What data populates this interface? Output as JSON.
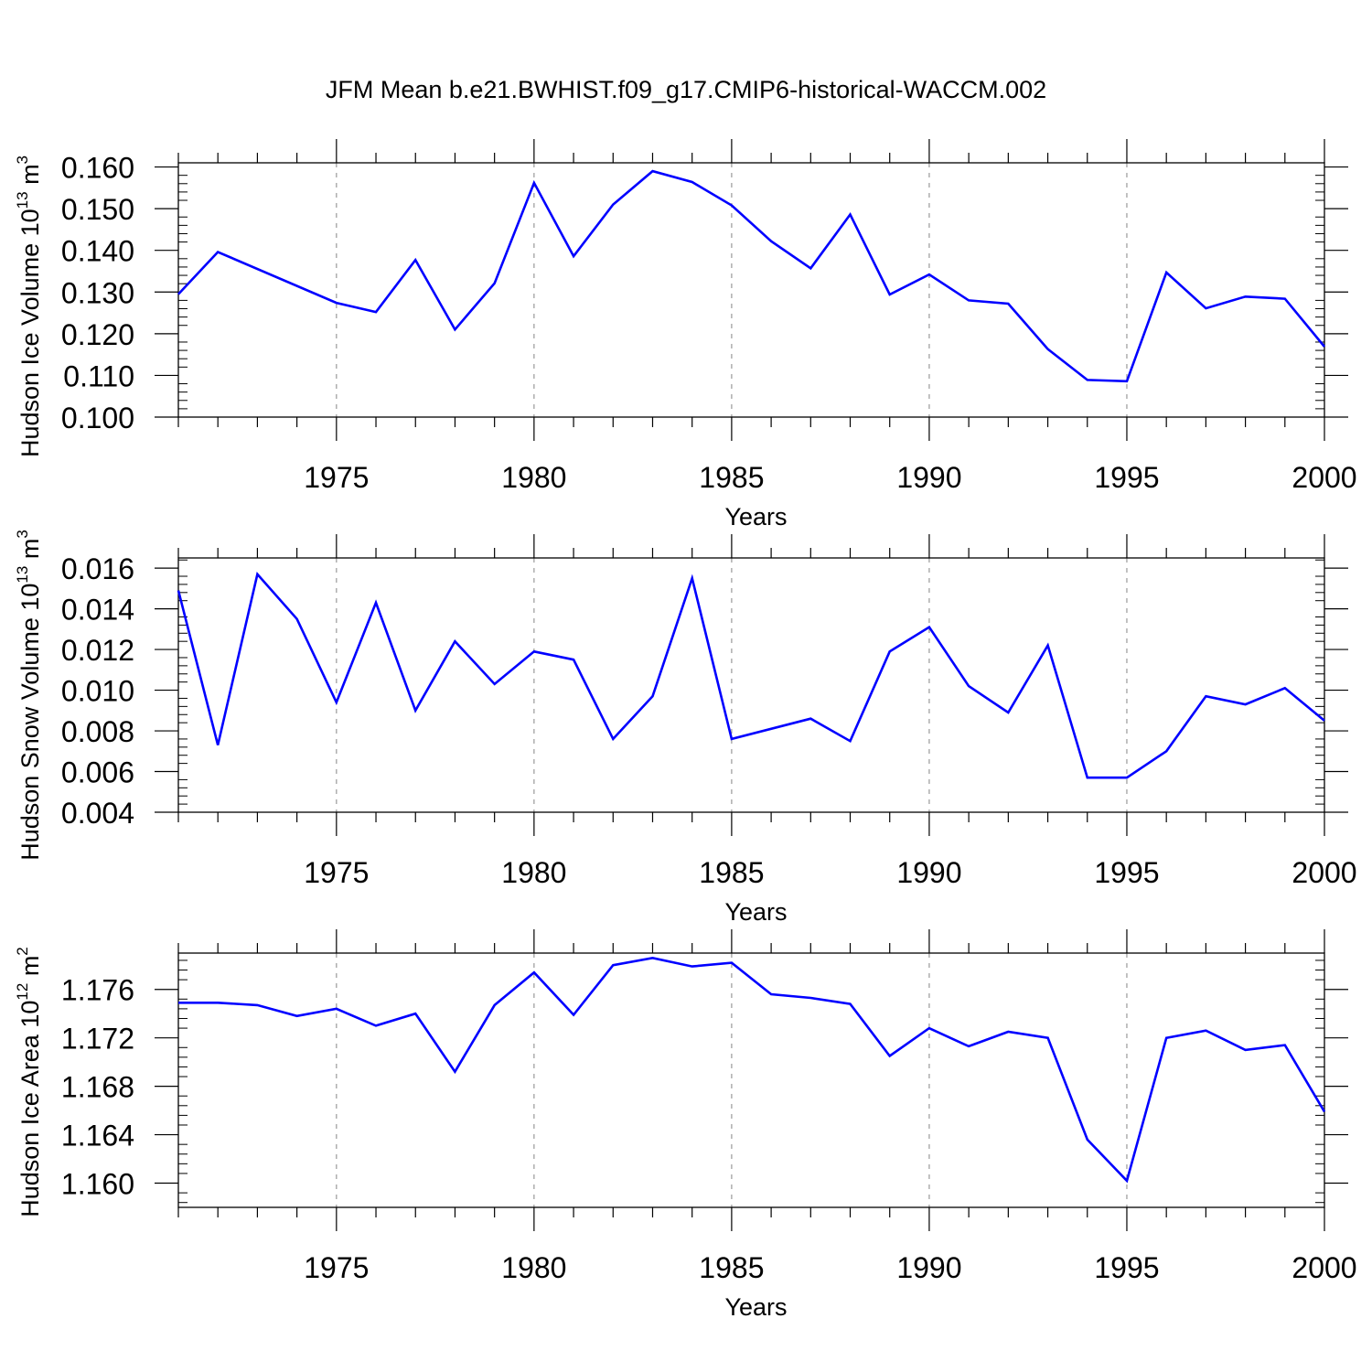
{
  "title": "JFM Mean b.e21.BWHIST.f09_g17.CMIP6-historical-WACCM.002",
  "colors": {
    "series": "#0000ff",
    "axis": "#000000",
    "grid": "#999999",
    "background": "#ffffff"
  },
  "chart_data": [
    {
      "type": "line",
      "ylabel": "Hudson Ice Volume 10",
      "ylabel_sup": "13",
      "ylabel_unit": " m",
      "ylabel_unit_sup": "3",
      "xlabel": "Years",
      "xlim": [
        1971,
        2000
      ],
      "ylim": [
        0.1,
        0.161
      ],
      "yticks": [
        0.1,
        0.11,
        0.12,
        0.13,
        0.14,
        0.15,
        0.16
      ],
      "ytick_labels": [
        "0.100",
        "0.110",
        "0.120",
        "0.130",
        "0.140",
        "0.150",
        "0.160"
      ],
      "xticks": [
        1975,
        1980,
        1985,
        1990,
        1995,
        2000
      ],
      "xtick_labels": [
        "1975",
        "1980",
        "1985",
        "1990",
        "1995",
        "2000"
      ],
      "grid": "vertical dashed at major x ticks",
      "x": [
        1971,
        1972,
        1975,
        1976,
        1977,
        1978,
        1979,
        1980,
        1981,
        1982,
        1983,
        1984,
        1985,
        1986,
        1987,
        1988,
        1989,
        1990,
        1991,
        1992,
        1993,
        1994,
        1995,
        1996,
        1997,
        1998,
        1999,
        2000
      ],
      "values": [
        0.1295,
        0.1396,
        0.1274,
        0.1252,
        0.1377,
        0.121,
        0.1321,
        0.1562,
        0.1386,
        0.151,
        0.159,
        0.1564,
        0.1508,
        0.1422,
        0.1357,
        0.1486,
        0.1294,
        0.1342,
        0.128,
        0.1272,
        0.1163,
        0.1089,
        0.1086,
        0.1347,
        0.1261,
        0.1289,
        0.1284,
        0.1169
      ]
    },
    {
      "type": "line",
      "ylabel": "Hudson Snow Volume 10",
      "ylabel_sup": "13",
      "ylabel_unit": " m",
      "ylabel_unit_sup": "3",
      "xlabel": "Years",
      "xlim": [
        1971,
        2000
      ],
      "ylim": [
        0.004,
        0.0165
      ],
      "yticks": [
        0.004,
        0.006,
        0.008,
        0.01,
        0.012,
        0.014,
        0.016
      ],
      "ytick_labels": [
        "0.004",
        "0.006",
        "0.008",
        "0.010",
        "0.012",
        "0.014",
        "0.016"
      ],
      "xticks": [
        1975,
        1980,
        1985,
        1990,
        1995,
        2000
      ],
      "xtick_labels": [
        "1975",
        "1980",
        "1985",
        "1990",
        "1995",
        "2000"
      ],
      "grid": "vertical dashed at major x ticks",
      "x": [
        1971,
        1972,
        1973,
        1974,
        1975,
        1976,
        1977,
        1978,
        1979,
        1980,
        1981,
        1982,
        1983,
        1984,
        1985,
        1987,
        1988,
        1989,
        1990,
        1991,
        1992,
        1993,
        1994,
        1995,
        1996,
        1997,
        1998,
        1999,
        2000
      ],
      "values": [
        0.0149,
        0.0073,
        0.0157,
        0.0135,
        0.0094,
        0.0143,
        0.009,
        0.0124,
        0.0103,
        0.0119,
        0.0115,
        0.0076,
        0.0097,
        0.0155,
        0.0076,
        0.0086,
        0.0075,
        0.0119,
        0.0131,
        0.0102,
        0.0089,
        0.0122,
        0.0057,
        0.0057,
        0.007,
        0.0097,
        0.0093,
        0.0101,
        0.0085
      ]
    },
    {
      "type": "line",
      "ylabel": "Hudson Ice Area 10",
      "ylabel_sup": "12",
      "ylabel_unit": " m",
      "ylabel_unit_sup": "2",
      "xlabel": "Years",
      "xlim": [
        1971,
        2000
      ],
      "ylim": [
        1.158,
        1.179
      ],
      "yticks": [
        1.16,
        1.164,
        1.168,
        1.172,
        1.176
      ],
      "ytick_labels": [
        "1.160",
        "1.164",
        "1.168",
        "1.172",
        "1.176"
      ],
      "xticks": [
        1975,
        1980,
        1985,
        1990,
        1995,
        2000
      ],
      "xtick_labels": [
        "1975",
        "1980",
        "1985",
        "1990",
        "1995",
        "2000"
      ],
      "grid": "vertical dashed at major x ticks",
      "x": [
        1971,
        1972,
        1973,
        1974,
        1975,
        1976,
        1977,
        1978,
        1979,
        1980,
        1981,
        1982,
        1983,
        1984,
        1985,
        1986,
        1987,
        1988,
        1989,
        1990,
        1991,
        1992,
        1993,
        1994,
        1995,
        1996,
        1997,
        1998,
        1999,
        2000
      ],
      "values": [
        1.1749,
        1.1749,
        1.1747,
        1.1738,
        1.1744,
        1.173,
        1.174,
        1.1692,
        1.1747,
        1.1774,
        1.1739,
        1.178,
        1.1786,
        1.1779,
        1.1782,
        1.1756,
        1.1753,
        1.1748,
        1.1705,
        1.1728,
        1.1713,
        1.1725,
        1.172,
        1.1636,
        1.1602,
        1.172,
        1.1726,
        1.171,
        1.1714,
        1.1659
      ]
    }
  ]
}
